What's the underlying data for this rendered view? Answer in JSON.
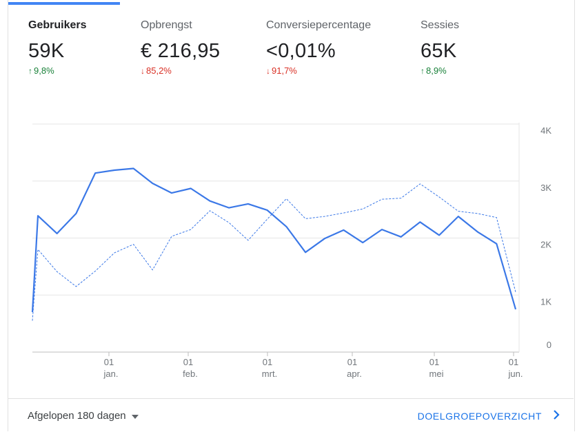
{
  "metrics": [
    {
      "label": "Gebruikers",
      "value": "59K",
      "change": "9,8%",
      "direction": "up"
    },
    {
      "label": "Opbrengst",
      "value": "€ 216,95",
      "change": "85,2%",
      "direction": "down"
    },
    {
      "label": "Conversiepercentage",
      "value": "<0,01%",
      "change": "91,7%",
      "direction": "down"
    },
    {
      "label": "Sessies",
      "value": "65K",
      "change": "8,9%",
      "direction": "up"
    }
  ],
  "footer": {
    "period": "Afgelopen 180 dagen",
    "overview_link": "DOELGROEPOVERZICHT"
  },
  "colors": {
    "accent": "#4285f4",
    "up": "#188038",
    "down": "#d93025",
    "link": "#1a73e8"
  },
  "chart_data": {
    "type": "line",
    "ylim": [
      0,
      4000
    ],
    "yticks": [
      "0",
      "1K",
      "2K",
      "3K",
      "4K"
    ],
    "xticks": [
      {
        "day": "01",
        "month": "jan."
      },
      {
        "day": "01",
        "month": "feb."
      },
      {
        "day": "01",
        "month": "mrt."
      },
      {
        "day": "01",
        "month": "apr."
      },
      {
        "day": "01",
        "month": "mei"
      },
      {
        "day": "01",
        "month": "jun."
      }
    ],
    "series": [
      {
        "style": "solid",
        "values": [
          700,
          2390,
          2080,
          2430,
          3140,
          3190,
          3220,
          2960,
          2790,
          2870,
          2650,
          2530,
          2600,
          2490,
          2200,
          1750,
          1990,
          2140,
          1920,
          2150,
          2020,
          2280,
          2050,
          2380,
          2110,
          1900,
          750
        ]
      },
      {
        "style": "dashed",
        "values": [
          550,
          1800,
          1410,
          1150,
          1420,
          1740,
          1890,
          1440,
          2030,
          2150,
          2480,
          2270,
          1960,
          2330,
          2690,
          2340,
          2380,
          2440,
          2510,
          2680,
          2700,
          2950,
          2720,
          2470,
          2430,
          2360,
          1050
        ]
      }
    ]
  }
}
